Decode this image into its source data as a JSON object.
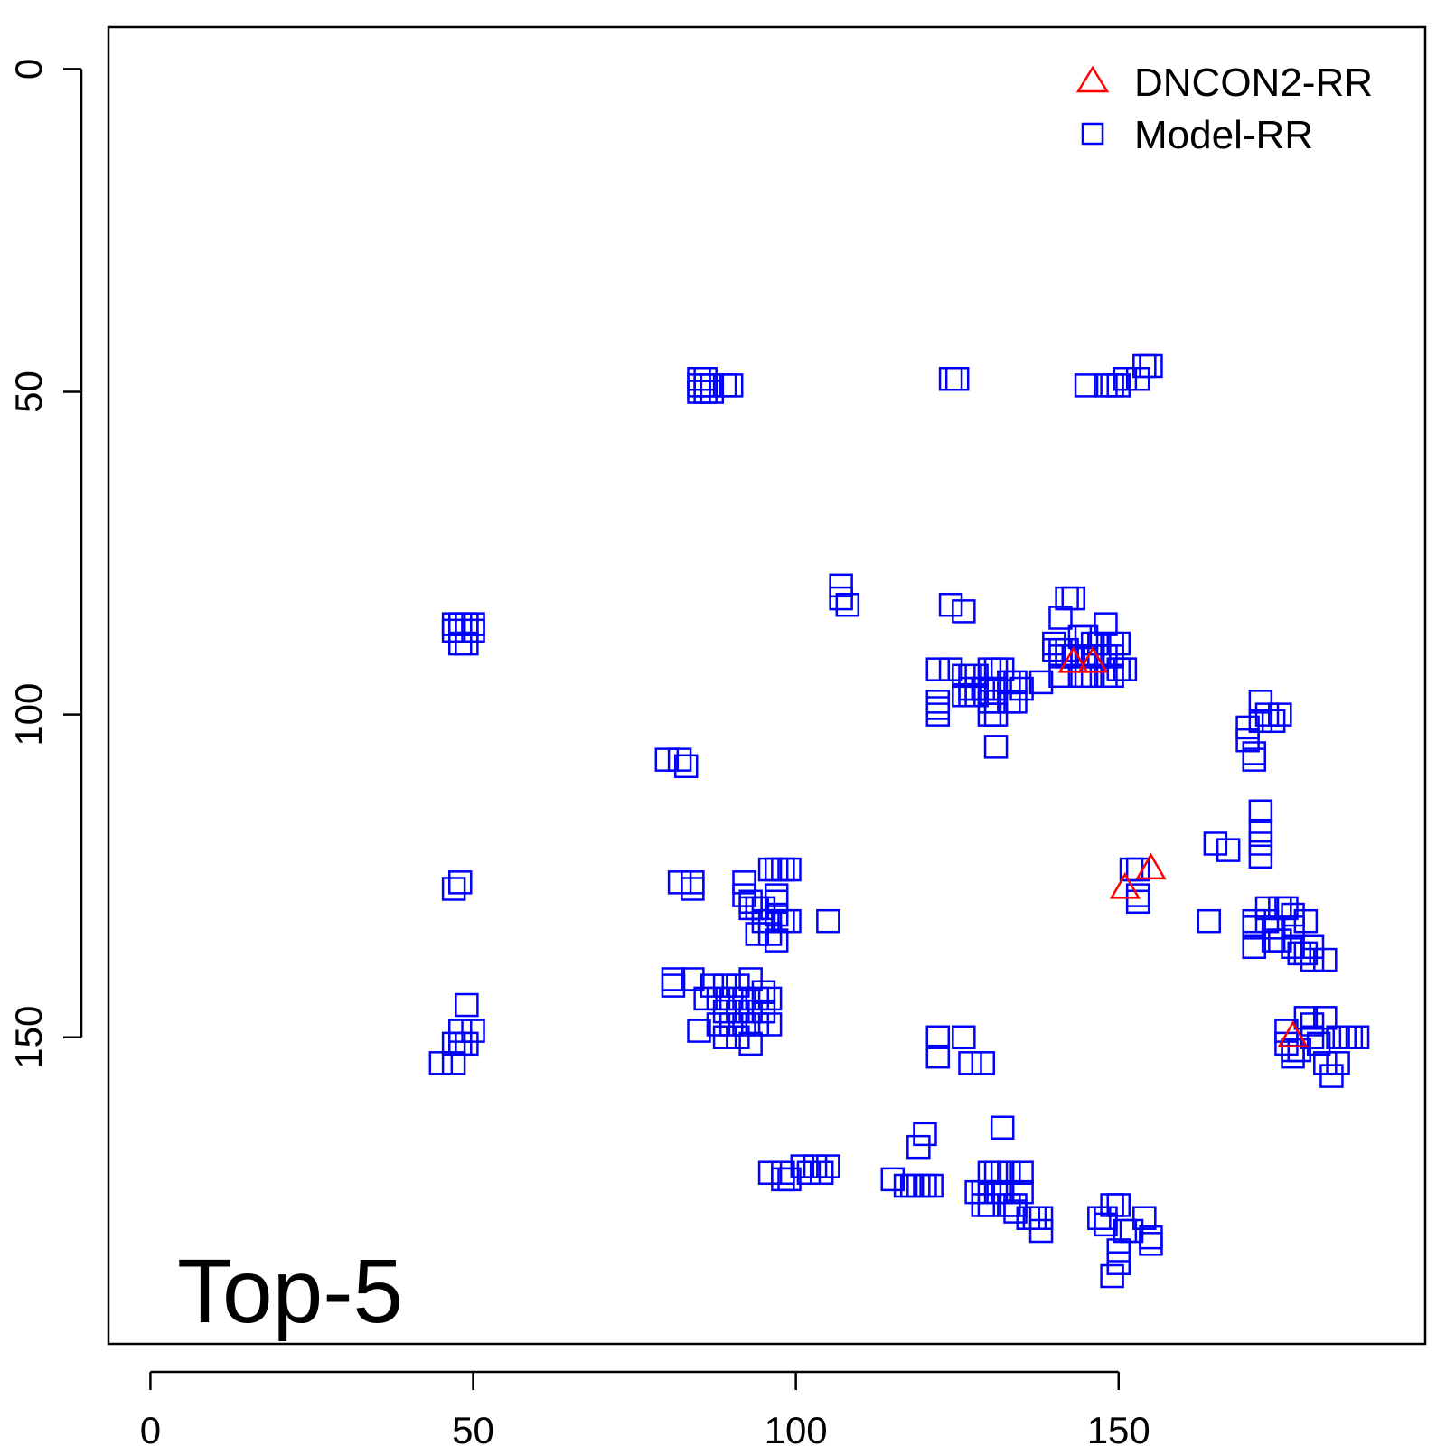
{
  "chart_data": {
    "type": "scatter",
    "title": "",
    "xlabel": "",
    "ylabel": "",
    "panel_label": "Top-5",
    "xlim": [
      -6.5,
      197.5
    ],
    "ylim": [
      -6.5,
      197.5
    ],
    "y_axis_inverted": true,
    "grid": false,
    "legend_position": "top-right",
    "x_ticks": [
      0,
      50,
      100,
      150
    ],
    "x_tick_labels": [
      "0",
      "50",
      "100",
      "150"
    ],
    "y_ticks": [
      0,
      50,
      100,
      150
    ],
    "y_tick_labels": [
      "0",
      "50",
      "100",
      "150"
    ],
    "series": [
      {
        "name": "DNCON2-RR",
        "marker": "triangle",
        "color": "#ff0000",
        "points": [
          [
            143,
            92
          ],
          [
            146,
            92
          ],
          [
            151,
            127
          ],
          [
            155,
            124
          ],
          [
            177,
            150
          ]
        ]
      },
      {
        "name": "Model-RR",
        "marker": "square",
        "color": "#0000ff",
        "points": [
          [
            47,
            86
          ],
          [
            48,
            86
          ],
          [
            49,
            86
          ],
          [
            50,
            86
          ],
          [
            47,
            87
          ],
          [
            49,
            87
          ],
          [
            50,
            87
          ],
          [
            48,
            89
          ],
          [
            49,
            89
          ],
          [
            47,
            127
          ],
          [
            48,
            126
          ],
          [
            49,
            145
          ],
          [
            48,
            149
          ],
          [
            50,
            149
          ],
          [
            47,
            151
          ],
          [
            48,
            151
          ],
          [
            49,
            151
          ],
          [
            45,
            154
          ],
          [
            47,
            154
          ],
          [
            85,
            48
          ],
          [
            86,
            48
          ],
          [
            85,
            49
          ],
          [
            86,
            49
          ],
          [
            87,
            49
          ],
          [
            89,
            49
          ],
          [
            90,
            49
          ],
          [
            85,
            50
          ],
          [
            86,
            50
          ],
          [
            87,
            50
          ],
          [
            80,
            107
          ],
          [
            82,
            107
          ],
          [
            83,
            108
          ],
          [
            82,
            126
          ],
          [
            84,
            126
          ],
          [
            84,
            127
          ],
          [
            81,
            141
          ],
          [
            81,
            142
          ],
          [
            84,
            141
          ],
          [
            87,
            142
          ],
          [
            89,
            142
          ],
          [
            91,
            142
          ],
          [
            93,
            141
          ],
          [
            95,
            143
          ],
          [
            86,
            144
          ],
          [
            88,
            144
          ],
          [
            90,
            144
          ],
          [
            92,
            144
          ],
          [
            94,
            144
          ],
          [
            96,
            144
          ],
          [
            89,
            146
          ],
          [
            91,
            146
          ],
          [
            93,
            146
          ],
          [
            95,
            146
          ],
          [
            88,
            148
          ],
          [
            90,
            148
          ],
          [
            92,
            148
          ],
          [
            94,
            148
          ],
          [
            96,
            148
          ],
          [
            85,
            149
          ],
          [
            89,
            150
          ],
          [
            91,
            150
          ],
          [
            93,
            151
          ],
          [
            92,
            126
          ],
          [
            92,
            128
          ],
          [
            93,
            129
          ],
          [
            93,
            130
          ],
          [
            94,
            130
          ],
          [
            95,
            130
          ],
          [
            97,
            128
          ],
          [
            97,
            129
          ],
          [
            97,
            131
          ],
          [
            95,
            132
          ],
          [
            96,
            132
          ],
          [
            98,
            132
          ],
          [
            99,
            132
          ],
          [
            94,
            134
          ],
          [
            96,
            134
          ],
          [
            97,
            135
          ],
          [
            96,
            124
          ],
          [
            97,
            124
          ],
          [
            98,
            124
          ],
          [
            99,
            124
          ],
          [
            105,
            132
          ],
          [
            107,
            80
          ],
          [
            107,
            82
          ],
          [
            108,
            83
          ],
          [
            96,
            171
          ],
          [
            98,
            171
          ],
          [
            98,
            172
          ],
          [
            99,
            172
          ],
          [
            101,
            170
          ],
          [
            102,
            171
          ],
          [
            103,
            170
          ],
          [
            104,
            171
          ],
          [
            105,
            170
          ],
          [
            115,
            172
          ],
          [
            117,
            173
          ],
          [
            118,
            173
          ],
          [
            119,
            173
          ],
          [
            120,
            173
          ],
          [
            121,
            173
          ],
          [
            119,
            167
          ],
          [
            120,
            165
          ],
          [
            122,
            150
          ],
          [
            122,
            153
          ],
          [
            126,
            150
          ],
          [
            127,
            154
          ],
          [
            129,
            154
          ],
          [
            124,
            48
          ],
          [
            125,
            48
          ],
          [
            124,
            83
          ],
          [
            126,
            84
          ],
          [
            122,
            93
          ],
          [
            122,
            98
          ],
          [
            122,
            99
          ],
          [
            122,
            100
          ],
          [
            124,
            93
          ],
          [
            126,
            94
          ],
          [
            127,
            94
          ],
          [
            128,
            94
          ],
          [
            130,
            93
          ],
          [
            131,
            93
          ],
          [
            132,
            93
          ],
          [
            127,
            96
          ],
          [
            128,
            96
          ],
          [
            129,
            96
          ],
          [
            130,
            96
          ],
          [
            131,
            96
          ],
          [
            133,
            95
          ],
          [
            134,
            95
          ],
          [
            135,
            96
          ],
          [
            126,
            97
          ],
          [
            127,
            97
          ],
          [
            128,
            97
          ],
          [
            130,
            98
          ],
          [
            131,
            98
          ],
          [
            133,
            98
          ],
          [
            134,
            98
          ],
          [
            130,
            100
          ],
          [
            131,
            100
          ],
          [
            138,
            95
          ],
          [
            131,
            105
          ],
          [
            132,
            164
          ],
          [
            130,
            171
          ],
          [
            131,
            171
          ],
          [
            132,
            171
          ],
          [
            133,
            171
          ],
          [
            135,
            171
          ],
          [
            128,
            174
          ],
          [
            129,
            174
          ],
          [
            130,
            174
          ],
          [
            131,
            174
          ],
          [
            132,
            174
          ],
          [
            135,
            174
          ],
          [
            129,
            176
          ],
          [
            130,
            176
          ],
          [
            133,
            176
          ],
          [
            134,
            176
          ],
          [
            136,
            178
          ],
          [
            137,
            178
          ],
          [
            138,
            178
          ],
          [
            138,
            180
          ],
          [
            134,
            177
          ],
          [
            142,
            82
          ],
          [
            143,
            82
          ],
          [
            141,
            85
          ],
          [
            140,
            89
          ],
          [
            140,
            90
          ],
          [
            141,
            90
          ],
          [
            142,
            90
          ],
          [
            144,
            88
          ],
          [
            145,
            88
          ],
          [
            146,
            89
          ],
          [
            147,
            89
          ],
          [
            148,
            86
          ],
          [
            149,
            89
          ],
          [
            150,
            89
          ],
          [
            141,
            91
          ],
          [
            142,
            91
          ],
          [
            143,
            91
          ],
          [
            145,
            91
          ],
          [
            146,
            91
          ],
          [
            147,
            91
          ],
          [
            148,
            91
          ],
          [
            149,
            91
          ],
          [
            141,
            94
          ],
          [
            144,
            94
          ],
          [
            145,
            94
          ],
          [
            146,
            94
          ],
          [
            148,
            94
          ],
          [
            149,
            94
          ],
          [
            150,
            93
          ],
          [
            151,
            93
          ],
          [
            145,
            49
          ],
          [
            148,
            49
          ],
          [
            149,
            49
          ],
          [
            150,
            49
          ],
          [
            151,
            48
          ],
          [
            153,
            48
          ],
          [
            154,
            46
          ],
          [
            155,
            46
          ],
          [
            152,
            124
          ],
          [
            153,
            124
          ],
          [
            153,
            128
          ],
          [
            153,
            129
          ],
          [
            147,
            178
          ],
          [
            148,
            178
          ],
          [
            149,
            176
          ],
          [
            150,
            176
          ],
          [
            151,
            180
          ],
          [
            152,
            180
          ],
          [
            154,
            178
          ],
          [
            155,
            181
          ],
          [
            155,
            182
          ],
          [
            150,
            183
          ],
          [
            150,
            185
          ],
          [
            149,
            187
          ],
          [
            148,
            179
          ],
          [
            164,
            132
          ],
          [
            165,
            120
          ],
          [
            167,
            121
          ],
          [
            170,
            102
          ],
          [
            170,
            104
          ],
          [
            171,
            106
          ],
          [
            171,
            107
          ],
          [
            172,
            98
          ],
          [
            172,
            101
          ],
          [
            173,
            100
          ],
          [
            174,
            101
          ],
          [
            175,
            100
          ],
          [
            171,
            132
          ],
          [
            171,
            133
          ],
          [
            171,
            136
          ],
          [
            172,
            115
          ],
          [
            172,
            118
          ],
          [
            172,
            120
          ],
          [
            172,
            122
          ],
          [
            173,
            130
          ],
          [
            173,
            132
          ],
          [
            174,
            133
          ],
          [
            175,
            130
          ],
          [
            176,
            130
          ],
          [
            177,
            131
          ],
          [
            177,
            133
          ],
          [
            174,
            135
          ],
          [
            175,
            135
          ],
          [
            177,
            136
          ],
          [
            178,
            137
          ],
          [
            179,
            132
          ],
          [
            179,
            137
          ],
          [
            180,
            136
          ],
          [
            180,
            138
          ],
          [
            182,
            138
          ],
          [
            176,
            149
          ],
          [
            176,
            151
          ],
          [
            177,
            152
          ],
          [
            178,
            152
          ],
          [
            179,
            147
          ],
          [
            180,
            148
          ],
          [
            180,
            150
          ],
          [
            181,
            151
          ],
          [
            182,
            147
          ],
          [
            177,
            153
          ],
          [
            184,
            150
          ],
          [
            185,
            150
          ],
          [
            186,
            150
          ],
          [
            187,
            150
          ],
          [
            182,
            154
          ],
          [
            183,
            156
          ],
          [
            184,
            154
          ]
        ]
      }
    ]
  }
}
